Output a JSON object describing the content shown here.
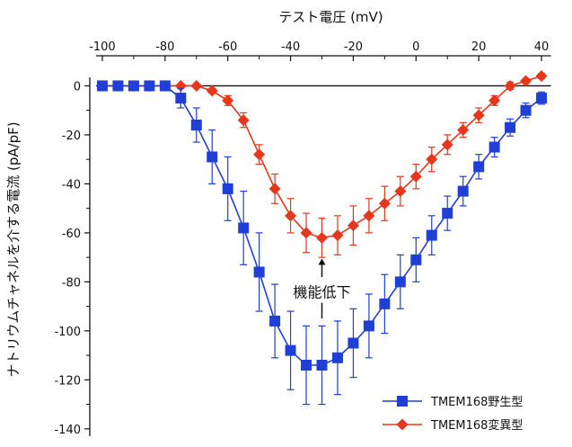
{
  "chart_data": {
    "type": "line",
    "xlabel": "テスト電圧 (mV)",
    "ylabel": "ナトリウムチャネルを介する電流 (pA/pF)",
    "x_axis_position": "top",
    "xlim": [
      -104,
      44
    ],
    "ylim": [
      -143,
      2
    ],
    "x_ticks": [
      -100,
      -80,
      -60,
      -40,
      -20,
      0,
      20,
      40
    ],
    "y_ticks": [
      0,
      -20,
      -40,
      -60,
      -80,
      -100,
      -120,
      -140
    ],
    "grid": false,
    "legend_position": "bottom-right",
    "series": [
      {
        "name": "TMEM168野生型",
        "color": "#1f3fd6",
        "marker": "square",
        "x": [
          -100,
          -95,
          -90,
          -85,
          -80,
          -75,
          -70,
          -65,
          -60,
          -55,
          -50,
          -45,
          -40,
          -35,
          -30,
          -25,
          -20,
          -15,
          -10,
          -5,
          0,
          5,
          10,
          15,
          20,
          25,
          30,
          35,
          40
        ],
        "y": [
          0,
          0,
          0,
          0,
          0,
          -5,
          -16,
          -29,
          -42,
          -58,
          -76,
          -96,
          -108,
          -114,
          -114,
          -111,
          -105,
          -98,
          -89,
          -80,
          -71,
          -61,
          -52,
          -43,
          -33,
          -25,
          -17,
          -10,
          -5
        ],
        "err": [
          0.5,
          0.5,
          0.5,
          0.5,
          0.8,
          4,
          7,
          11,
          13,
          15,
          16,
          15,
          16,
          16,
          16,
          15,
          14,
          13,
          12,
          11,
          9,
          8,
          7,
          6,
          5,
          4,
          3.5,
          3,
          2.5
        ]
      },
      {
        "name": "TMEM168変異型",
        "color": "#e8361c",
        "marker": "diamond",
        "x": [
          -100,
          -95,
          -90,
          -85,
          -80,
          -75,
          -70,
          -65,
          -60,
          -55,
          -50,
          -45,
          -40,
          -35,
          -30,
          -25,
          -20,
          -15,
          -10,
          -5,
          0,
          5,
          10,
          15,
          20,
          25,
          30,
          35,
          40
        ],
        "y": [
          0,
          0,
          0,
          0,
          0,
          0,
          0,
          -2,
          -6,
          -14,
          -28,
          -42,
          -53,
          -60,
          -62,
          -61,
          -57,
          -53,
          -48,
          -43,
          -37,
          -30,
          -24,
          -18,
          -12,
          -6,
          0,
          2,
          4
        ],
        "err": [
          0.3,
          0.3,
          0.3,
          0.3,
          0.3,
          0.3,
          0.4,
          1,
          2,
          3,
          4,
          6,
          7,
          8,
          8,
          8,
          8,
          7,
          7,
          6,
          5,
          5,
          4,
          3,
          3,
          2,
          1.5,
          1,
          1
        ]
      }
    ],
    "annotations": [
      {
        "text": "機能低下",
        "x": -30,
        "y": -84
      }
    ]
  }
}
